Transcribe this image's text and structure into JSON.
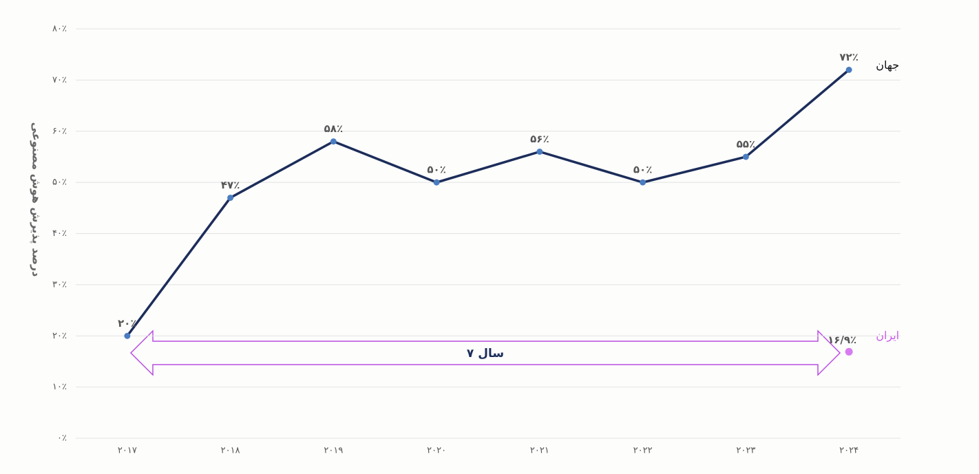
{
  "chart_data": {
    "type": "line",
    "y_label": "درصد پذیرش هوش مصنوعی",
    "categories": [
      "۲۰۱۷",
      "۲۰۱۸",
      "۲۰۱۹",
      "۲۰۲۰",
      "۲۰۲۱",
      "۲۰۲۲",
      "۲۰۲۳",
      "۲۰۲۴"
    ],
    "series": [
      {
        "name": "جهان",
        "color": "#1c2d5a",
        "marker_color": "#4a7cc0",
        "values": [
          20,
          47,
          58,
          50,
          56,
          50,
          55,
          72
        ],
        "value_labels": [
          "۲۰٪",
          "۴۷٪",
          "۵۸٪",
          "۵۰٪",
          "۵۶٪",
          "۵۰٪",
          "۵۵٪",
          "۷۲٪"
        ]
      },
      {
        "name": "ایران",
        "color": "#c95ee6",
        "marker_color": "#d77cf0",
        "values": [
          null,
          null,
          null,
          null,
          null,
          null,
          null,
          16.9
        ],
        "value_labels": [
          null,
          null,
          null,
          null,
          null,
          null,
          null,
          "۱۶/۹٪"
        ]
      }
    ],
    "annotation": "۷ سال",
    "ylim": [
      0,
      80
    ],
    "yticks": [
      {
        "value": 0,
        "label": "۰٪"
      },
      {
        "value": 10,
        "label": "۱۰٪"
      },
      {
        "value": 20,
        "label": "۲۰٪"
      },
      {
        "value": 30,
        "label": "۳۰٪"
      },
      {
        "value": 40,
        "label": "۴۰٪"
      },
      {
        "value": 50,
        "label": "۵۰٪"
      },
      {
        "value": 60,
        "label": "۶۰٪"
      },
      {
        "value": 70,
        "label": "۷۰٪"
      },
      {
        "value": 80,
        "label": "۸۰٪"
      }
    ],
    "grid": true
  }
}
